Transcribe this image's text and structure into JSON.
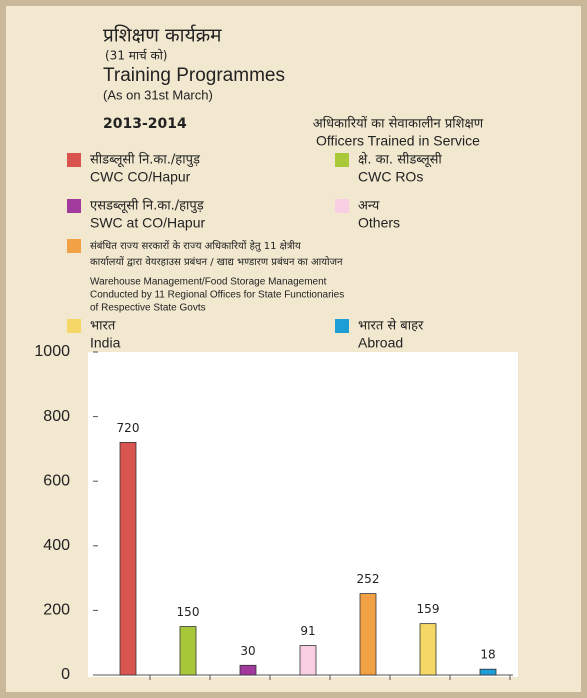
{
  "chart_data": {
    "type": "bar",
    "title_hindi": "प्रशिक्षण कार्यक्रम",
    "subtitle_hindi": "(31 मार्च को)",
    "title": "Training Programmes",
    "subtitle": "(As on 31st March)",
    "year": "2013-2014",
    "heading_hindi": "अधिकारियों का सेवाकालीन प्रशिक्षण",
    "heading": "Officers Trained in Service",
    "legend": [
      {
        "hindi": [
          "सीडब्लूसी नि.का./हापुड़"
        ],
        "english": [
          "CWC CO/Hapur"
        ]
      },
      {
        "hindi": [
          "क्षे. का. सीडब्लूसी"
        ],
        "english": [
          "CWC ROs"
        ]
      },
      {
        "hindi": [
          "एसडब्लूसी नि.का./हापुड़"
        ],
        "english": [
          "SWC at CO/Hapur"
        ]
      },
      {
        "hindi": [
          "अन्य"
        ],
        "english": [
          "Others"
        ]
      },
      {
        "hindi": [
          "संबंधित राज्य सरकारों के राज्य अधिकारियों हेतु 11 क्षेत्रीय",
          "कार्यालयों द्वारा वेयरहाउस प्रबंधन / खाद्य भण्डारण प्रबंधन का आयोजन"
        ],
        "english": [
          "Warehouse Management/Food Storage Management",
          "Conducted by 11 Regional Offices for State Functionaries",
          "of Respective State Govts"
        ]
      },
      {
        "hindi": [
          "भारत"
        ],
        "english": [
          "India"
        ]
      },
      {
        "hindi": [
          "भारत से बाहर"
        ],
        "english": [
          "Abroad"
        ]
      }
    ],
    "values": [
      720,
      150,
      30,
      91,
      252,
      159,
      18
    ],
    "colors": [
      "#d9544f",
      "#a8c83a",
      "#a2399c",
      "#f8cfe2",
      "#f2a144",
      "#f5d765",
      "#1e9ed6"
    ],
    "ylim": [
      0,
      1000
    ],
    "yticks": [
      0,
      200,
      400,
      600,
      800,
      1000
    ]
  }
}
